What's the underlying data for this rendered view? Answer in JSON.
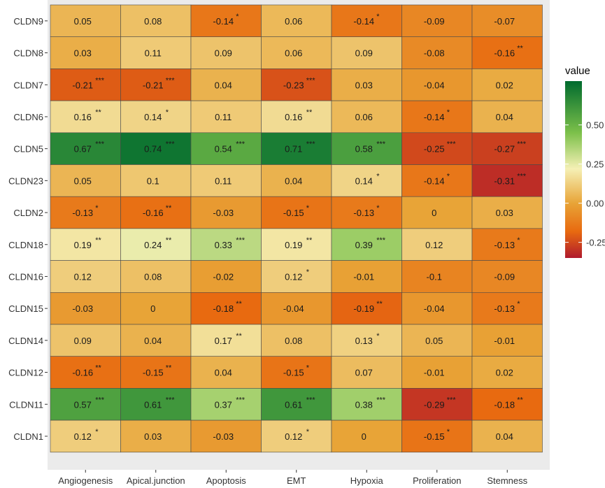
{
  "chart_data": {
    "type": "heatmap",
    "x": [
      "Angiogenesis",
      "Apical.junction",
      "Apoptosis",
      "EMT",
      "Hypoxia",
      "Proliferation",
      "Stemness"
    ],
    "y": [
      "CLDN9",
      "CLDN8",
      "CLDN7",
      "CLDN6",
      "CLDN5",
      "CLDN23",
      "CLDN2",
      "CLDN18",
      "CLDN16",
      "CLDN15",
      "CLDN14",
      "CLDN12",
      "CLDN11",
      "CLDN1"
    ],
    "values": [
      [
        0.05,
        0.08,
        -0.14,
        0.06,
        -0.14,
        -0.09,
        -0.07
      ],
      [
        0.03,
        0.11,
        0.09,
        0.06,
        0.09,
        -0.08,
        -0.16
      ],
      [
        -0.21,
        -0.21,
        0.04,
        -0.23,
        0.03,
        -0.04,
        0.02
      ],
      [
        0.16,
        0.14,
        0.11,
        0.16,
        0.06,
        -0.14,
        0.04
      ],
      [
        0.67,
        0.74,
        0.54,
        0.71,
        0.58,
        -0.25,
        -0.27
      ],
      [
        0.05,
        0.1,
        0.11,
        0.04,
        0.14,
        -0.14,
        -0.31
      ],
      [
        -0.13,
        -0.16,
        -0.03,
        -0.15,
        -0.13,
        0,
        0.03
      ],
      [
        0.19,
        0.24,
        0.33,
        0.19,
        0.39,
        0.12,
        -0.13
      ],
      [
        0.12,
        0.08,
        -0.02,
        0.12,
        -0.01,
        -0.1,
        -0.09
      ],
      [
        -0.03,
        0,
        -0.18,
        -0.04,
        -0.19,
        -0.04,
        -0.13
      ],
      [
        0.09,
        0.04,
        0.17,
        0.08,
        0.13,
        0.05,
        -0.01
      ],
      [
        -0.16,
        -0.15,
        0.04,
        -0.15,
        0.07,
        -0.01,
        0.02
      ],
      [
        0.57,
        0.61,
        0.37,
        0.61,
        0.38,
        -0.29,
        -0.18
      ],
      [
        0.12,
        0.03,
        -0.03,
        0.12,
        0,
        -0.15,
        0.04
      ]
    ],
    "labels": [
      [
        "0.05",
        "0.08",
        "-0.14",
        "0.06",
        "-0.14",
        "-0.09",
        "-0.07"
      ],
      [
        "0.03",
        "0.11",
        "0.09",
        "0.06",
        "0.09",
        "-0.08",
        "-0.16"
      ],
      [
        "-0.21",
        "-0.21",
        "0.04",
        "-0.23",
        "0.03",
        "-0.04",
        "0.02"
      ],
      [
        "0.16",
        "0.14",
        "0.11",
        "0.16",
        "0.06",
        "-0.14",
        "0.04"
      ],
      [
        "0.67",
        "0.74",
        "0.54",
        "0.71",
        "0.58",
        "-0.25",
        "-0.27"
      ],
      [
        "0.05",
        "0.1",
        "0.11",
        "0.04",
        "0.14",
        "-0.14",
        "-0.31"
      ],
      [
        "-0.13",
        "-0.16",
        "-0.03",
        "-0.15",
        "-0.13",
        "0",
        "0.03"
      ],
      [
        "0.19",
        "0.24",
        "0.33",
        "0.19",
        "0.39",
        "0.12",
        "-0.13"
      ],
      [
        "0.12",
        "0.08",
        "-0.02",
        "0.12",
        "-0.01",
        "-0.1",
        "-0.09"
      ],
      [
        "-0.03",
        "0",
        "-0.18",
        "-0.04",
        "-0.19",
        "-0.04",
        "-0.13"
      ],
      [
        "0.09",
        "0.04",
        "0.17",
        "0.08",
        "0.13",
        "0.05",
        "-0.01"
      ],
      [
        "-0.16",
        "-0.15",
        "0.04",
        "-0.15",
        "0.07",
        "-0.01",
        "0.02"
      ],
      [
        "0.57",
        "0.61",
        "0.37",
        "0.61",
        "0.38",
        "-0.29",
        "-0.18"
      ],
      [
        "0.12",
        "0.03",
        "-0.03",
        "0.12",
        "0",
        "-0.15",
        "0.04"
      ]
    ],
    "significance": [
      [
        "",
        "",
        "*",
        "",
        "*",
        "",
        ""
      ],
      [
        "",
        "",
        "",
        "",
        "",
        "",
        "**"
      ],
      [
        "***",
        "***",
        "",
        "***",
        "",
        "",
        ""
      ],
      [
        "**",
        "*",
        "",
        "**",
        "",
        "*",
        ""
      ],
      [
        "***",
        "***",
        "***",
        "***",
        "***",
        "***",
        "***"
      ],
      [
        "",
        "",
        "",
        "",
        "*",
        "*",
        "***"
      ],
      [
        "*",
        "**",
        "",
        "*",
        "*",
        "",
        ""
      ],
      [
        "**",
        "**",
        "***",
        "**",
        "***",
        "",
        "*"
      ],
      [
        "",
        "",
        "",
        "*",
        "",
        "",
        ""
      ],
      [
        "",
        "",
        "**",
        "",
        "**",
        "",
        "*"
      ],
      [
        "",
        "",
        "**",
        "",
        "*",
        "",
        ""
      ],
      [
        "**",
        "**",
        "",
        "*",
        "",
        "",
        ""
      ],
      [
        "***",
        "***",
        "***",
        "***",
        "***",
        "***",
        "**"
      ],
      [
        "*",
        "",
        "",
        "*",
        "",
        "*",
        ""
      ]
    ],
    "legend": {
      "title": "value",
      "position": "right",
      "range": [
        -0.35,
        0.78
      ],
      "ticks": [
        0.5,
        0.25,
        0.0,
        -0.25
      ],
      "tick_labels": [
        "0.50",
        "0.25",
        "0.00",
        "-0.25"
      ]
    },
    "colors": {
      "low": "#b01a2d",
      "mid_low": "#e86a10",
      "mid": "#e8a437",
      "mid_high": "#f5f0b5",
      "high_mid": "#7cc04a",
      "high": "#006b2e",
      "panel_background": "#ebebeb"
    },
    "grid": false
  }
}
